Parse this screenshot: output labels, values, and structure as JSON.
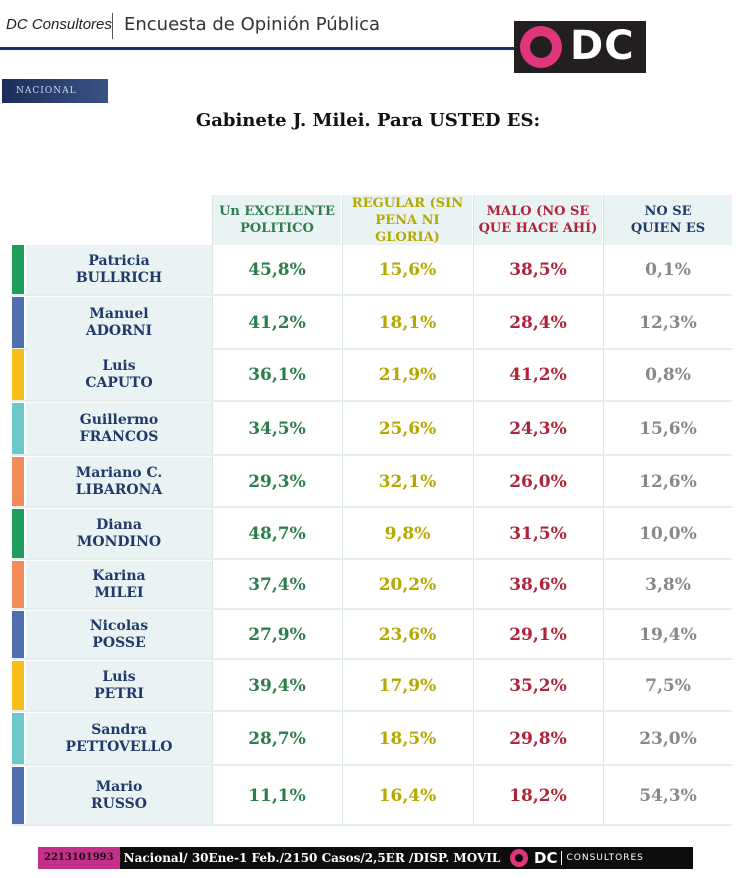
{
  "header": {
    "brand": "DC Consultores",
    "title": "Encuesta de Opinión Pública",
    "logo_text": "DC"
  },
  "tag": "NACIONAL",
  "subtitle": "Gabinete J. Milei.  Para USTED ES:",
  "columns": [
    {
      "line1": "Un EXCELENTE",
      "line2": "POLITICO",
      "color": "#2e7d4f"
    },
    {
      "line1": "REGULAR (SIN",
      "line2": "PENA NI GLORIA)",
      "color": "#b5a800"
    },
    {
      "line1": "MALO (NO SE",
      "line2": "QUE HACE AHÍ)",
      "color": "#b0243a"
    },
    {
      "line1": "NO SE",
      "line2": "QUIEN ES",
      "color": "#1f3a6b"
    }
  ],
  "value_colors": [
    "#2e7d4f",
    "#b5a800",
    "#b0243a",
    "#888888"
  ],
  "rows": [
    {
      "first": "Patricia",
      "last": "BULLRICH",
      "bar": "#1e9e5a",
      "v": [
        "45,8%",
        "15,6%",
        "38,5%",
        "0,1%"
      ]
    },
    {
      "first": "Manuel",
      "last": "ADORNI",
      "bar": "#4f6fae",
      "v": [
        "41,2%",
        "18,1%",
        "28,4%",
        "12,3%"
      ]
    },
    {
      "first": "Luis",
      "last": "CAPUTO",
      "bar": "#f5bc1c",
      "v": [
        "36,1%",
        "21,9%",
        "41,2%",
        "0,8%"
      ]
    },
    {
      "first": "Guillermo",
      "last": "FRANCOS",
      "bar": "#6dc9c9",
      "v": [
        "34,5%",
        "25,6%",
        "24,3%",
        "15,6%"
      ]
    },
    {
      "first": "Mariano C.",
      "last": "LIBARONA",
      "bar": "#f28a5a",
      "v": [
        "29,3%",
        "32,1%",
        "26,0%",
        "12,6%"
      ]
    },
    {
      "first": "Diana",
      "last": "MONDINO",
      "bar": "#1e9e5a",
      "v": [
        "48,7%",
        "9,8%",
        "31,5%",
        "10,0%"
      ]
    },
    {
      "first": "Karina",
      "last": "MILEI",
      "bar": "#f28a5a",
      "v": [
        "37,4%",
        "20,2%",
        "38,6%",
        "3,8%"
      ]
    },
    {
      "first": "Nicolas",
      "last": "POSSE",
      "bar": "#4f6fae",
      "v": [
        "27,9%",
        "23,6%",
        "29,1%",
        "19,4%"
      ]
    },
    {
      "first": "Luis",
      "last": "PETRI",
      "bar": "#f5bc1c",
      "v": [
        "39,4%",
        "17,9%",
        "35,2%",
        "7,5%"
      ]
    },
    {
      "first": "Sandra",
      "last": "PETTOVELLO",
      "bar": "#6dc9c9",
      "v": [
        "28,7%",
        "18,5%",
        "29,8%",
        "23,0%"
      ]
    },
    {
      "first": "Mario",
      "last": "RUSSO",
      "bar": "#4f6fae",
      "v": [
        "11,1%",
        "16,4%",
        "18,2%",
        "54,3%"
      ]
    }
  ],
  "footer": {
    "phone": "2213101993",
    "text": "Nacional/ 30Ene-1 Feb./2150 Casos/2,5ER /DISP. MOVIL",
    "logo_dc": "DC",
    "logo_cons": "CONSULTORES"
  }
}
